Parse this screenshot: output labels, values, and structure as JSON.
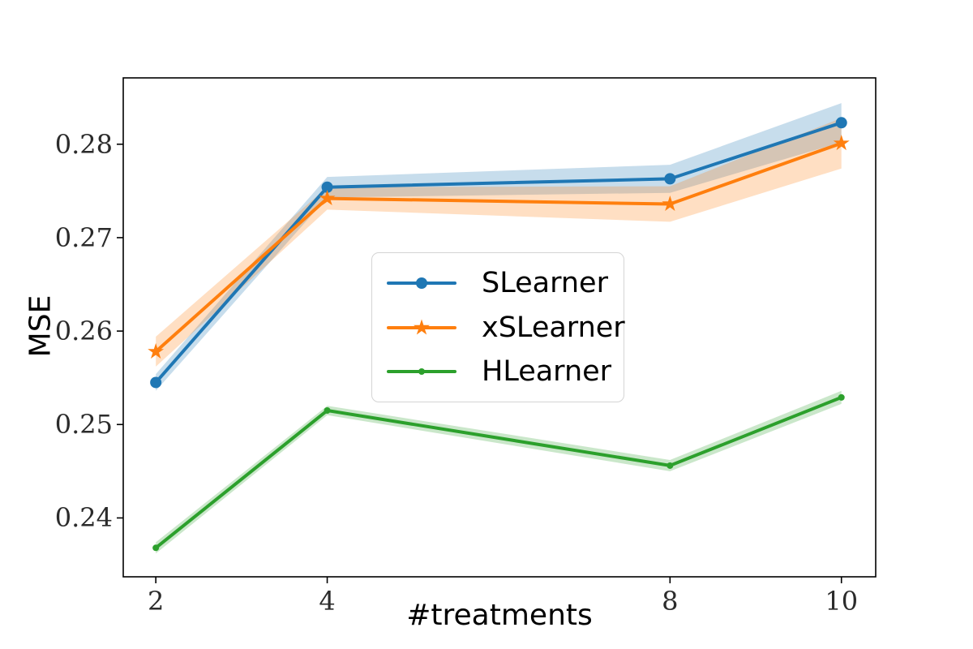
{
  "figure": {
    "background": "#ffffff"
  },
  "chart_data": {
    "type": "line",
    "title": "",
    "xlabel": "#treatments",
    "ylabel": "MSE",
    "x": [
      2,
      4,
      8,
      10
    ],
    "xlim": [
      1.62,
      10.4
    ],
    "ylim": [
      0.2337,
      0.2871
    ],
    "grid": false,
    "legend_position": "center",
    "axis_color": "#000000",
    "tick_color": "#2b2b2b",
    "band_opacity": 0.25,
    "xticks": [
      {
        "value": 2,
        "label": "2"
      },
      {
        "value": 4,
        "label": "4"
      },
      {
        "value": 8,
        "label": "8"
      },
      {
        "value": 10,
        "label": "10"
      }
    ],
    "yticks": [
      {
        "value": 0.24,
        "label": "0.24"
      },
      {
        "value": 0.25,
        "label": "0.25"
      },
      {
        "value": 0.26,
        "label": "0.26"
      },
      {
        "value": 0.27,
        "label": "0.27"
      },
      {
        "value": 0.28,
        "label": "0.28"
      }
    ],
    "series": [
      {
        "name": "SLearner",
        "color": "#1f77b4",
        "marker": "circle",
        "values": [
          0.2545,
          0.2754,
          0.2763,
          0.2823
        ],
        "band_halfwidth": [
          0.0009,
          0.0011,
          0.0015,
          0.0021
        ]
      },
      {
        "name": "xSLearner",
        "color": "#ff7f0e",
        "marker": "star",
        "values": [
          0.2578,
          0.2742,
          0.2736,
          0.2801
        ],
        "band_halfwidth": [
          0.0016,
          0.0012,
          0.0019,
          0.0027
        ]
      },
      {
        "name": "HLearner",
        "color": "#2ca02c",
        "marker": "dot",
        "values": [
          0.2368,
          0.2515,
          0.2456,
          0.2529
        ],
        "band_halfwidth": [
          0.0006,
          0.0005,
          0.0006,
          0.0007
        ]
      }
    ]
  }
}
